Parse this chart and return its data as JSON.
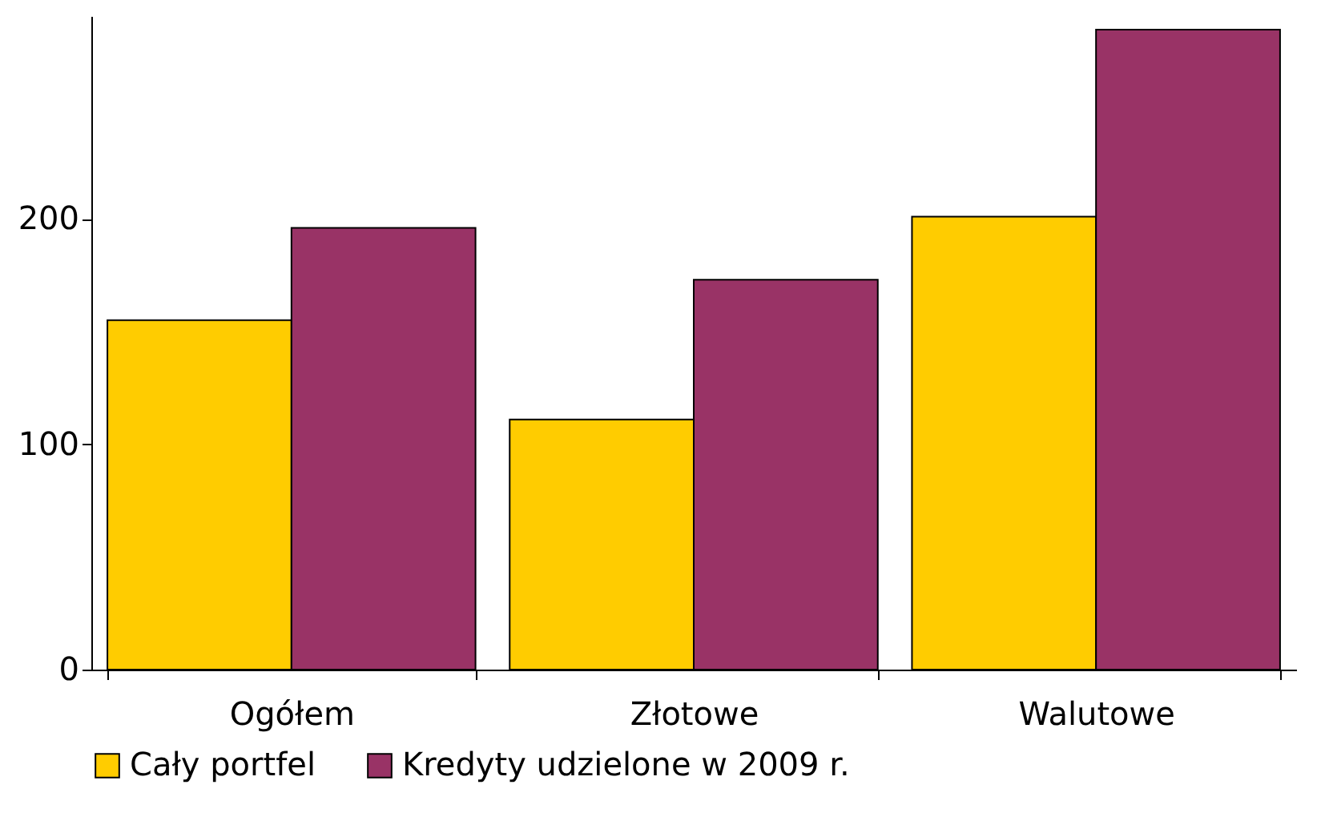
{
  "chart_data": {
    "type": "bar",
    "categories": [
      "Ogółem",
      "Złotowe",
      "Walutowe"
    ],
    "series": [
      {
        "name": "Cały portfel",
        "color": "#ffcc00",
        "values": [
          155,
          111,
          201
        ]
      },
      {
        "name": "Kredyty udzielone w 2009 r.",
        "color": "#993366",
        "values": [
          196,
          173,
          284
        ]
      }
    ],
    "ylim": [
      0,
      290
    ],
    "yticks": [
      0,
      100,
      200
    ],
    "grid": false,
    "legend": "bottom"
  }
}
